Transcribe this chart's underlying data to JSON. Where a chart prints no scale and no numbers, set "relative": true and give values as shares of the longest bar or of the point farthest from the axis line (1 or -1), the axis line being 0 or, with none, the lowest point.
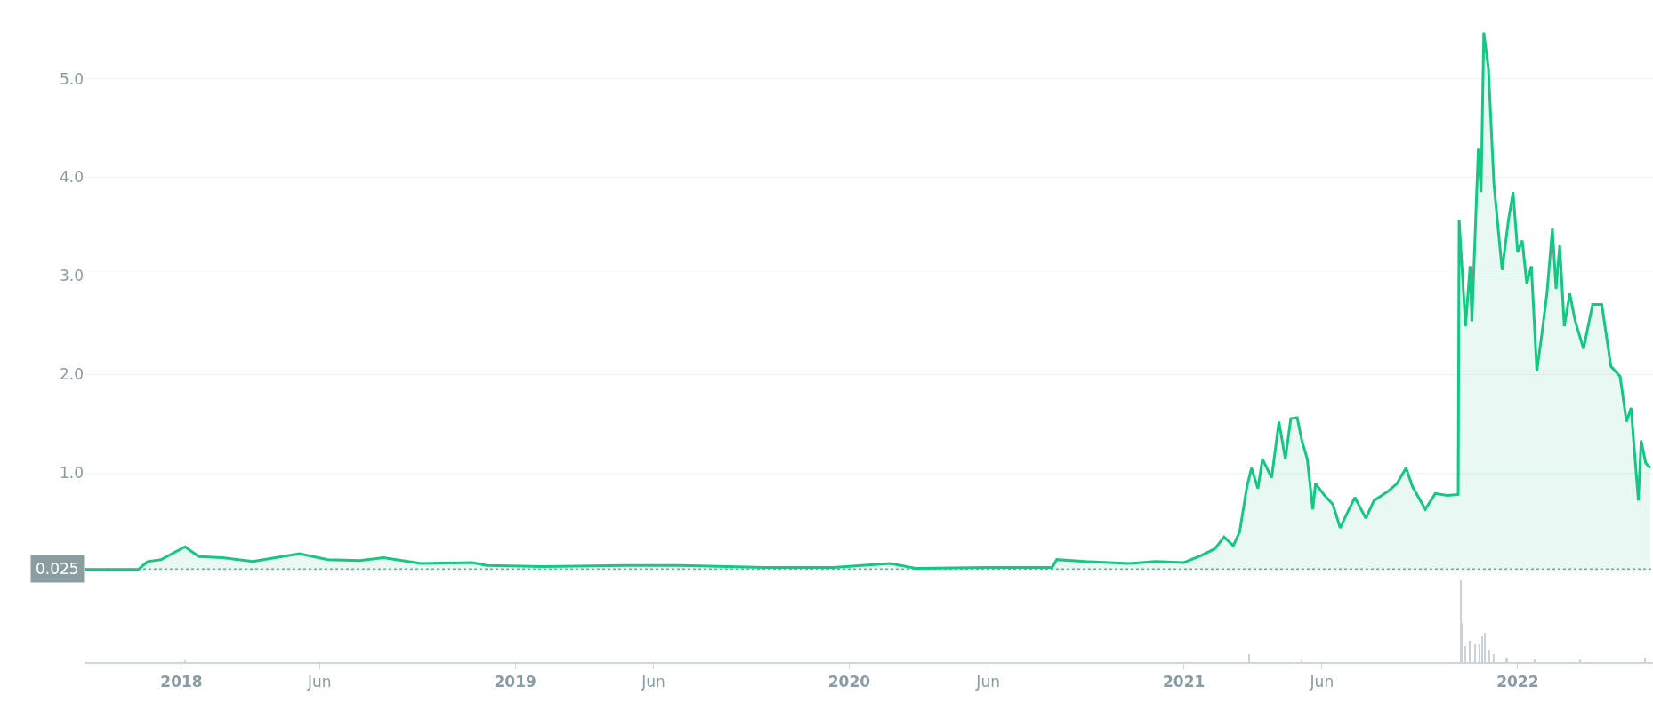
{
  "chart_data": [
    {
      "type": "area",
      "color": "#16c784",
      "xlim": [
        "2017-09-17",
        "2022-05-29"
      ],
      "ylim": [
        0,
        5.8
      ],
      "yticks": [
        {
          "value": 1,
          "label": "1.0"
        },
        {
          "value": 2,
          "label": "2.0"
        },
        {
          "value": 3,
          "label": "3.0"
        },
        {
          "value": 4,
          "label": "4.0"
        },
        {
          "value": 5,
          "label": "5.0"
        }
      ],
      "grid": "y",
      "tick_labels": "y",
      "x": [
        "2017-09-17",
        "2017-11-15",
        "2017-11-25",
        "2017-12-10",
        "2018-01-05",
        "2018-01-20",
        "2018-02-15",
        "2018-03-20",
        "2018-05-10",
        "2018-06-10",
        "2018-07-15",
        "2018-08-10",
        "2018-09-20",
        "2018-11-15",
        "2018-12-01",
        "2019-02-01",
        "2019-05-01",
        "2019-07-01",
        "2019-10-01",
        "2019-12-15",
        "2020-02-15",
        "2020-03-15",
        "2020-06-01",
        "2020-08-10",
        "2020-08-15",
        "2020-09-15",
        "2020-11-01",
        "2020-12-01",
        "2021-01-01",
        "2021-01-20",
        "2021-02-04",
        "2021-02-14",
        "2021-02-24",
        "2021-03-03",
        "2021-03-11",
        "2021-03-16",
        "2021-03-23",
        "2021-03-28",
        "2021-04-07",
        "2021-04-15",
        "2021-04-22",
        "2021-04-28",
        "2021-05-05",
        "2021-05-10",
        "2021-05-16",
        "2021-05-22",
        "2021-05-25",
        "2021-06-04",
        "2021-06-13",
        "2021-06-21",
        "2021-06-28",
        "2021-07-07",
        "2021-07-19",
        "2021-07-28",
        "2021-08-12",
        "2021-08-22",
        "2021-09-01",
        "2021-09-08",
        "2021-09-22",
        "2021-10-03",
        "2021-10-16",
        "2021-10-28",
        "2021-10-29",
        "2021-11-05",
        "2021-11-10",
        "2021-11-12",
        "2021-11-19",
        "2021-11-22",
        "2021-11-25",
        "2021-11-30",
        "2021-12-06",
        "2021-12-15",
        "2021-12-22",
        "2021-12-27",
        "2022-01-01",
        "2022-01-06",
        "2022-01-11",
        "2022-01-16",
        "2022-01-22",
        "2022-01-28",
        "2022-02-02",
        "2022-02-08",
        "2022-02-12",
        "2022-02-16",
        "2022-02-21",
        "2022-02-27",
        "2022-03-05",
        "2022-03-14",
        "2022-03-24",
        "2022-04-03",
        "2022-04-13",
        "2022-04-23",
        "2022-04-30",
        "2022-05-05",
        "2022-05-13",
        "2022-05-16",
        "2022-05-21",
        "2022-05-26"
      ],
      "values": [
        0.02,
        0.02,
        0.1,
        0.12,
        0.25,
        0.15,
        0.14,
        0.1,
        0.18,
        0.12,
        0.11,
        0.14,
        0.08,
        0.09,
        0.06,
        0.05,
        0.06,
        0.06,
        0.04,
        0.04,
        0.08,
        0.03,
        0.04,
        0.04,
        0.12,
        0.1,
        0.08,
        0.1,
        0.09,
        0.16,
        0.23,
        0.35,
        0.26,
        0.4,
        0.86,
        1.05,
        0.84,
        1.14,
        0.95,
        1.52,
        1.14,
        1.55,
        1.56,
        1.33,
        1.14,
        0.63,
        0.89,
        0.77,
        0.68,
        0.44,
        0.58,
        0.75,
        0.54,
        0.72,
        0.81,
        0.89,
        1.05,
        0.86,
        0.63,
        0.79,
        0.77,
        0.78,
        3.57,
        2.49,
        3.1,
        2.54,
        4.29,
        3.85,
        5.47,
        5.11,
        3.94,
        3.06,
        3.57,
        3.85,
        3.24,
        3.36,
        2.92,
        3.1,
        2.03,
        2.45,
        2.82,
        3.48,
        2.87,
        3.31,
        2.49,
        2.82,
        2.54,
        2.26,
        2.71,
        2.71,
        2.08,
        1.98,
        1.52,
        1.66,
        0.72,
        1.33,
        1.1,
        1.05
      ],
      "ref_lines": [
        {
          "axis": "y",
          "value": 0.025,
          "label": "0.025",
          "color": "#8a9ea2",
          "line_style": "dotted"
        }
      ]
    },
    {
      "type": "bar",
      "relative": true,
      "color": "#c8d2d8",
      "tick_labels": "x",
      "xlim": [
        "2017-09-17",
        "2022-05-29"
      ],
      "xticks": [
        {
          "value": "2018-01-01",
          "label": "2018"
        },
        {
          "value": "2018-06-01",
          "label": "Jun"
        },
        {
          "value": "2019-01-01",
          "label": "2019"
        },
        {
          "value": "2019-06-01",
          "label": "Jun"
        },
        {
          "value": "2020-01-01",
          "label": "2020"
        },
        {
          "value": "2020-06-01",
          "label": "Jun"
        },
        {
          "value": "2021-01-01",
          "label": "2021"
        },
        {
          "value": "2021-06-01",
          "label": "Jun"
        },
        {
          "value": "2022-01-01",
          "label": "2022"
        }
      ],
      "x": [
        "2018-01-05",
        "2021-03-13",
        "2021-05-10",
        "2021-10-31",
        "2021-11-01",
        "2021-11-05",
        "2021-11-10",
        "2021-11-15",
        "2021-11-20",
        "2021-11-23",
        "2021-11-26",
        "2021-12-01",
        "2021-12-06",
        "2021-12-20",
        "2022-01-20",
        "2022-03-10",
        "2022-05-20"
      ],
      "values": [
        0.02,
        0.1,
        0.03,
        1.0,
        0.48,
        0.19,
        0.26,
        0.22,
        0.22,
        0.31,
        0.36,
        0.15,
        0.1,
        0.05,
        0.03,
        0.03,
        0.05
      ]
    }
  ]
}
